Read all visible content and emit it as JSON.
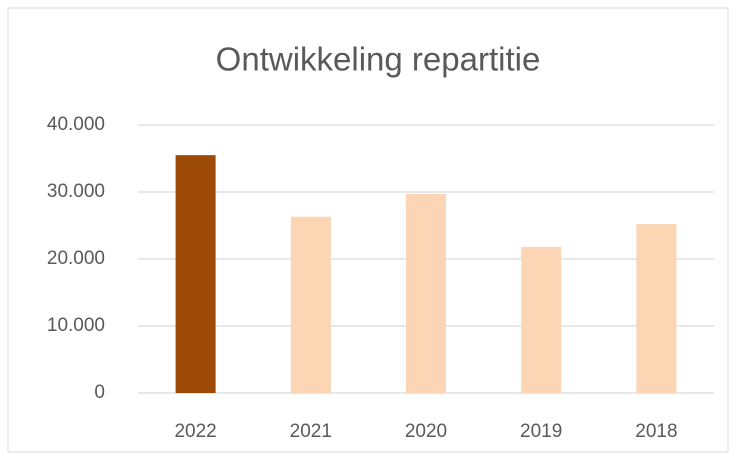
{
  "chart_data": {
    "type": "bar",
    "title": "Ontwikkeling repartitie",
    "categories": [
      "2022",
      "2021",
      "2020",
      "2019",
      "2018"
    ],
    "values": [
      35500,
      26300,
      29700,
      21800,
      25200
    ],
    "colors": [
      "#9c4a06",
      "#fcd5b4",
      "#fcd5b4",
      "#fcd5b4",
      "#fcd5b4"
    ],
    "ylim": [
      0,
      40000
    ],
    "yticks": [
      0,
      {
        "value": 10000,
        "label": "10.000"
      },
      {
        "value": 20000,
        "label": "20.000"
      },
      {
        "value": 30000,
        "label": "30.000"
      },
      {
        "value": 40000,
        "label": "40.000"
      }
    ],
    "grid": true
  }
}
